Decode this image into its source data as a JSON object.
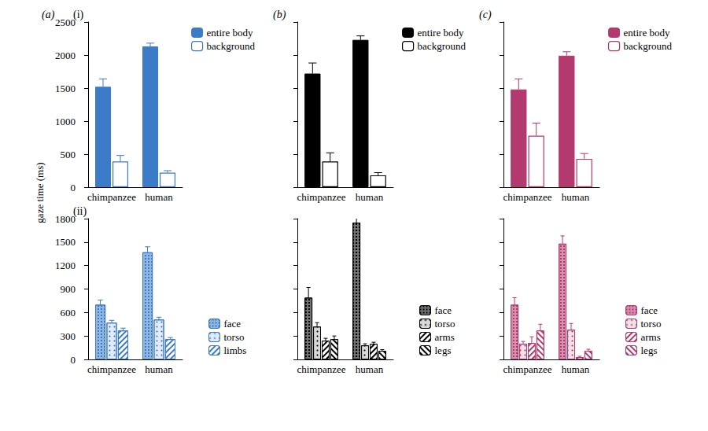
{
  "chart_data": [
    {
      "type": "bar",
      "title": "(a)",
      "subtitle": "(i)",
      "ylabel": "gaze time (ms)",
      "categories": [
        "chimpanzee",
        "human"
      ],
      "series": [
        {
          "name": "entire body",
          "color": "#3b7bc8",
          "values": [
            1520,
            2130
          ],
          "errors": [
            120,
            50
          ]
        },
        {
          "name": "background",
          "color": "#3b7bc8",
          "values": [
            390,
            220
          ],
          "errors": [
            90,
            30
          ]
        }
      ],
      "ylim": [
        0,
        2500
      ],
      "yticks": [
        0,
        500,
        1000,
        1500,
        2000,
        2500
      ],
      "legend": "upper right"
    },
    {
      "type": "bar",
      "title": "(b)",
      "categories": [
        "chimpanzee",
        "human"
      ],
      "series": [
        {
          "name": "entire body",
          "color": "#000000",
          "values": [
            1720,
            2230
          ],
          "errors": [
            160,
            60
          ]
        },
        {
          "name": "background",
          "color": "#000000",
          "values": [
            390,
            180
          ],
          "errors": [
            130,
            40
          ]
        }
      ],
      "ylim": [
        0,
        2500
      ],
      "yticks": [
        0,
        500,
        1000,
        1500,
        2000,
        2500
      ],
      "legend": "upper right",
      "tick_labels": "x"
    },
    {
      "type": "bar",
      "title": "(c)",
      "categories": [
        "chimpanzee",
        "human"
      ],
      "series": [
        {
          "name": "entire body",
          "color": "#b23a6e",
          "values": [
            1480,
            1990
          ],
          "errors": [
            160,
            60
          ]
        },
        {
          "name": "background",
          "color": "#b23a6e",
          "values": [
            780,
            430
          ],
          "errors": [
            190,
            80
          ]
        }
      ],
      "ylim": [
        0,
        2500
      ],
      "yticks": [
        0,
        500,
        1000,
        1500,
        2000,
        2500
      ],
      "legend": "upper right",
      "tick_labels": "x"
    },
    {
      "type": "bar",
      "subtitle": "(ii)",
      "categories": [
        "chimpanzee",
        "human"
      ],
      "series": [
        {
          "name": "face",
          "color": "#3b7bc8",
          "values": [
            700,
            1370
          ],
          "errors": [
            60,
            70
          ]
        },
        {
          "name": "torso",
          "color": "#3b7bc8",
          "values": [
            470,
            510
          ],
          "errors": [
            30,
            30
          ]
        },
        {
          "name": "limbs",
          "color": "#3b7bc8",
          "values": [
            370,
            260
          ],
          "errors": [
            30,
            20
          ]
        }
      ],
      "ylim": [
        0,
        1800
      ],
      "yticks": [
        0,
        300,
        600,
        900,
        1200,
        1500,
        1800
      ],
      "legend": "lower right"
    },
    {
      "type": "bar",
      "categories": [
        "chimpanzee",
        "human"
      ],
      "series": [
        {
          "name": "face",
          "color": "#000000",
          "values": [
            790,
            1750
          ],
          "errors": [
            130,
            70
          ]
        },
        {
          "name": "torso",
          "color": "#000000",
          "values": [
            420,
            180
          ],
          "errors": [
            50,
            20
          ]
        },
        {
          "name": "arms",
          "color": "#000000",
          "values": [
            240,
            200
          ],
          "errors": [
            30,
            20
          ]
        },
        {
          "name": "legs",
          "color": "#000000",
          "values": [
            260,
            110
          ],
          "errors": [
            40,
            15
          ]
        }
      ],
      "ylim": [
        0,
        1800
      ],
      "yticks": [
        0,
        300,
        600,
        900,
        1200,
        1500,
        1800
      ],
      "legend": "lower right",
      "tick_labels": "x"
    },
    {
      "type": "bar",
      "categories": [
        "chimpanzee",
        "human"
      ],
      "series": [
        {
          "name": "face",
          "color": "#b23a6e",
          "values": [
            700,
            1480
          ],
          "errors": [
            90,
            100
          ]
        },
        {
          "name": "torso",
          "color": "#b23a6e",
          "values": [
            200,
            380
          ],
          "errors": [
            30,
            80
          ]
        },
        {
          "name": "arms",
          "color": "#b23a6e",
          "values": [
            210,
            30
          ],
          "errors": [
            80,
            10
          ]
        },
        {
          "name": "legs",
          "color": "#b23a6e",
          "values": [
            370,
            110
          ],
          "errors": [
            80,
            20
          ]
        }
      ],
      "ylim": [
        0,
        1800
      ],
      "yticks": [
        0,
        300,
        600,
        900,
        1200,
        1500,
        1800
      ],
      "legend": "lower right",
      "tick_labels": "x"
    }
  ]
}
